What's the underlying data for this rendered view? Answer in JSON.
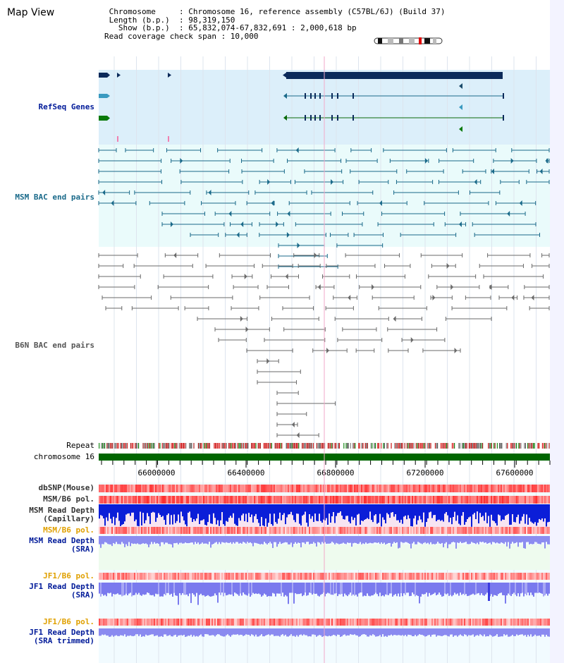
{
  "header": {
    "title": "Map View",
    "info_lines": [
      " Chromosome     : Chromosome 16, reference assembly (C57BL/6J) (Build 37)",
      " Length (b.p.)  : 98,319,150",
      "   Show (b.p.)  : 65,832,074-67,832,691 : 2,000,618 bp",
      "Read coverage check span : 10,000"
    ]
  },
  "tracks": {
    "refseq": "RefSeq Genes",
    "msm_bac": "MSM BAC end pairs",
    "b6n_bac": "B6N BAC end pairs",
    "repeat": "Repeat",
    "chromosome": "chromosome 16",
    "dbsnp": "dbSNP(Mouse)",
    "msm_b6_pol_1": "MSM/B6 pol.",
    "msm_read_depth_cap": "MSM Read Depth\n(Capillary)",
    "msm_b6_pol_2": "MSM/B6 pol.",
    "msm_read_depth_sra": "MSM Read Depth\n(SRA)",
    "jf1_b6_pol_1": "JF1/B6 pol.",
    "jf1_read_depth_sra": "JF1 Read Depth\n(SRA)",
    "jf1_b6_pol_2": "JF1/B6 pol.",
    "jf1_read_depth_trim": "JF1 Read Depth\n(SRA trimmed)"
  },
  "axis": {
    "ticks": [
      "66000000",
      "66400000",
      "66800000",
      "67200000",
      "67600000"
    ]
  },
  "colors": {
    "refseq_bg": "#dff0fb",
    "msm_bg": "#e8fbfb",
    "msm_feature": "#1a6a8a",
    "b6n_feature": "#666666",
    "chromosome_bar": "#006600",
    "snp_red": "#e82020",
    "depth_blue": "#0b1ed8",
    "depth_sra": "#8c8cf0",
    "label_navy": "#001a99",
    "label_orange": "#e0a000",
    "label_teal": "#1a6a8a",
    "label_gray": "#555555"
  }
}
